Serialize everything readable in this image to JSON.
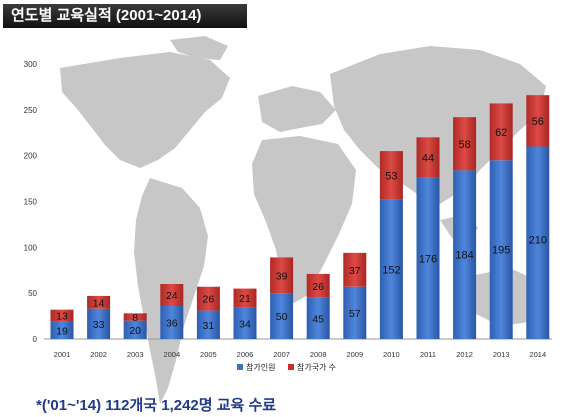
{
  "title": "연도별 교육실적 (2001~2014)",
  "footnote": "*('01~'14) 112개국 1,242명 교육 수료",
  "colors": {
    "participants": "#3d6fc4",
    "countries": "#c8302d",
    "map": "#c7c7c7",
    "axis_text": "#333333"
  },
  "chart_data": {
    "type": "bar",
    "stacked": true,
    "title": "연도별 교육실적 (2001~2014)",
    "xlabel": "",
    "ylabel": "",
    "ylim": [
      0,
      300
    ],
    "yticks": [
      0,
      50,
      100,
      150,
      200,
      250,
      300
    ],
    "grid": false,
    "legend": "bottom-center",
    "categories": [
      "2001",
      "2002",
      "2003",
      "2004",
      "2005",
      "2006",
      "2007",
      "2008",
      "2009",
      "2010",
      "2011",
      "2012",
      "2013",
      "2014"
    ],
    "series": [
      {
        "name": "참가인원",
        "values": [
          19,
          33,
          20,
          36,
          31,
          34,
          50,
          45,
          57,
          152,
          176,
          184,
          195,
          210
        ]
      },
      {
        "name": "참가국가 수",
        "values": [
          13,
          14,
          8,
          24,
          26,
          21,
          39,
          26,
          37,
          53,
          44,
          58,
          62,
          56
        ]
      }
    ]
  }
}
